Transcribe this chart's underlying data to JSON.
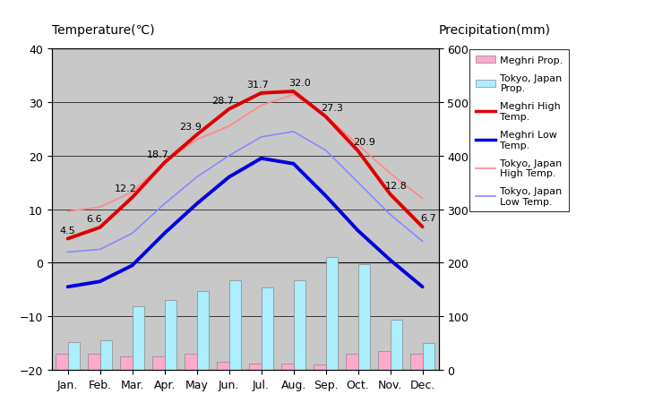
{
  "months": [
    "Jan.",
    "Feb.",
    "Mar.",
    "Apr.",
    "May",
    "Jun.",
    "Jul.",
    "Aug.",
    "Sep.",
    "Oct.",
    "Nov.",
    "Dec."
  ],
  "meghri_high": [
    4.5,
    6.6,
    12.2,
    18.7,
    23.9,
    28.7,
    31.7,
    32.0,
    27.3,
    20.9,
    12.8,
    6.7
  ],
  "meghri_low": [
    -4.5,
    -3.5,
    -0.5,
    5.5,
    11.0,
    16.0,
    19.5,
    18.5,
    12.5,
    6.0,
    0.5,
    -4.5
  ],
  "tokyo_high": [
    9.6,
    10.4,
    13.2,
    18.7,
    23.0,
    25.5,
    29.4,
    31.4,
    27.5,
    22.0,
    16.7,
    12.0
  ],
  "tokyo_low": [
    2.0,
    2.5,
    5.5,
    11.0,
    16.0,
    20.0,
    23.5,
    24.5,
    21.0,
    15.0,
    9.0,
    4.0
  ],
  "meghri_precip_vals": [
    30,
    30,
    25,
    25,
    30,
    15,
    12,
    12,
    10,
    30,
    35,
    30
  ],
  "tokyo_precip_vals": [
    52,
    56,
    118,
    130,
    147,
    168,
    154,
    168,
    210,
    197,
    93,
    51
  ],
  "temp_ylim": [
    -20,
    40
  ],
  "precip_ylim": [
    0,
    600
  ],
  "bg_color": "#c8c8c8",
  "meghri_high_color": "#dd0000",
  "meghri_low_color": "#0000dd",
  "tokyo_high_color": "#ff8888",
  "tokyo_low_color": "#8888ff",
  "meghri_precip_color": "#ffaacc",
  "tokyo_precip_color": "#aaeeff",
  "title_left": "Temperature(℃)",
  "title_right": "Precipitation(mm)",
  "legend_labels": [
    "Meghri Prop.",
    "Tokyo, Japan\nProp.",
    "Meghri High\nTemp.",
    "Meghri Low\nTemp.",
    "Tokyo, Japan\nHigh Temp.",
    "Tokyo, Japan\nLow Temp."
  ]
}
